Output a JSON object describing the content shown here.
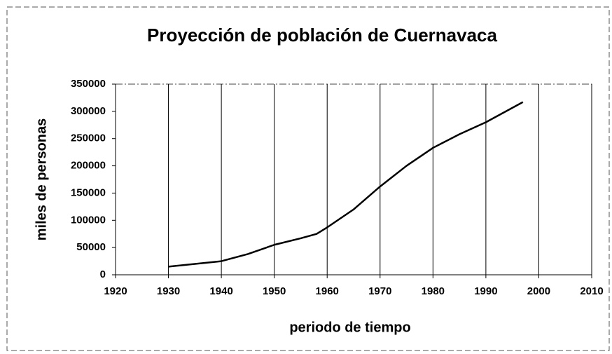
{
  "chart_data": {
    "type": "line",
    "title": "Proyección de población de Cuernavaca",
    "x_label": "periodo de tiempo",
    "y_label": "miles de personas",
    "x": [
      1930,
      1935,
      1940,
      1945,
      1950,
      1955,
      1958,
      1960,
      1965,
      1970,
      1975,
      1980,
      1985,
      1990,
      1997
    ],
    "values": [
      15000,
      20000,
      25000,
      38000,
      55000,
      67000,
      75000,
      87000,
      120000,
      162000,
      200000,
      233000,
      258000,
      280000,
      317000
    ],
    "color": "#000000",
    "xlim": [
      1920,
      2010
    ],
    "xticks": [
      1920,
      1930,
      1940,
      1950,
      1960,
      1970,
      1980,
      1990,
      2000,
      2010
    ],
    "ylim": [
      0,
      350000
    ],
    "yticks": [
      0,
      50000,
      100000,
      150000,
      200000,
      250000,
      300000,
      350000
    ],
    "grid": "x"
  }
}
